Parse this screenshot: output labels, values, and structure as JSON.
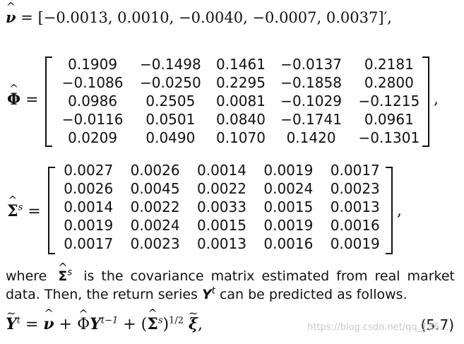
{
  "nu_hat": {
    "symbol": "ν",
    "eq": "=",
    "text": "[−0.0013, 0.0010, −0.0040, −0.0007, 0.0037]′,"
  },
  "phi_hat": {
    "symbol": "Φ",
    "eq": "=",
    "rows": [
      [
        "0.1909",
        "−0.1498",
        "0.1461",
        "−0.0137",
        "0.2181"
      ],
      [
        "−0.1086",
        "−0.0250",
        "0.2295",
        "−0.1858",
        "0.2800"
      ],
      [
        "0.0986",
        "0.2505",
        "0.0081",
        "−0.1029",
        "−0.1215"
      ],
      [
        "−0.0116",
        "0.0501",
        "0.0840",
        "−0.1741",
        "0.0961"
      ],
      [
        "0.0209",
        "0.0490",
        "0.1070",
        "0.1420",
        "−0.1301"
      ]
    ],
    "trail": ","
  },
  "sigma_hat": {
    "symbol": "Σ",
    "sup": "s",
    "eq": "=",
    "rows": [
      [
        "0.0027",
        "0.0026",
        "0.0014",
        "0.0019",
        "0.0017"
      ],
      [
        "0.0026",
        "0.0045",
        "0.0022",
        "0.0024",
        "0.0023"
      ],
      [
        "0.0014",
        "0.0022",
        "0.0033",
        "0.0015",
        "0.0013"
      ],
      [
        "0.0019",
        "0.0024",
        "0.0015",
        "0.0019",
        "0.0016"
      ],
      [
        "0.0017",
        "0.0023",
        "0.0013",
        "0.0016",
        "0.0019"
      ]
    ],
    "trail": ","
  },
  "paragraph": {
    "where": "where",
    "sigma": "Σ",
    "sup": "s",
    "rest1": "is the covariance matrix estimated from real market",
    "line2a": "data. Then, the return series",
    "y": "Y",
    "t": "t",
    "line2b": "can be predicted as follows."
  },
  "equation": {
    "lhs_y": "Y",
    "lhs_t": "t",
    "eq": "=",
    "nu": "ν",
    "plus1": "+",
    "phi": "Φ",
    "y": "Y",
    "tminus": "t−1",
    "plus2": "+ (",
    "sigma": "Σ",
    "s": "s",
    "close": ")",
    "half": "1/2",
    "xi": "ξ",
    "comma": ",",
    "number": "(5.7)"
  },
  "watermark": "https://blog.csdn.net/qq_186…"
}
